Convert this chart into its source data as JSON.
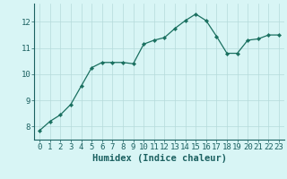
{
  "x": [
    0,
    1,
    2,
    3,
    4,
    5,
    6,
    7,
    8,
    9,
    10,
    11,
    12,
    13,
    14,
    15,
    16,
    17,
    18,
    19,
    20,
    21,
    22,
    23
  ],
  "y": [
    7.85,
    8.2,
    8.45,
    8.85,
    9.55,
    10.25,
    10.45,
    10.45,
    10.45,
    10.4,
    11.15,
    11.3,
    11.4,
    11.75,
    12.05,
    12.3,
    12.05,
    11.45,
    10.8,
    10.8,
    11.3,
    11.35,
    11.5,
    11.5
  ],
  "line_color": "#1a7060",
  "marker": "D",
  "marker_size": 2.2,
  "bg_color": "#d8f5f5",
  "grid_color": "#b5dada",
  "xlabel": "Humidex (Indice chaleur)",
  "ylim": [
    7.5,
    12.7
  ],
  "xlim": [
    -0.5,
    23.5
  ],
  "yticks": [
    8,
    9,
    10,
    11,
    12
  ],
  "xticks": [
    0,
    1,
    2,
    3,
    4,
    5,
    6,
    7,
    8,
    9,
    10,
    11,
    12,
    13,
    14,
    15,
    16,
    17,
    18,
    19,
    20,
    21,
    22,
    23
  ],
  "tick_color": "#1a6060",
  "label_color": "#1a6060",
  "tick_fontsize": 6.5,
  "xlabel_fontsize": 7.5,
  "linewidth": 0.9
}
